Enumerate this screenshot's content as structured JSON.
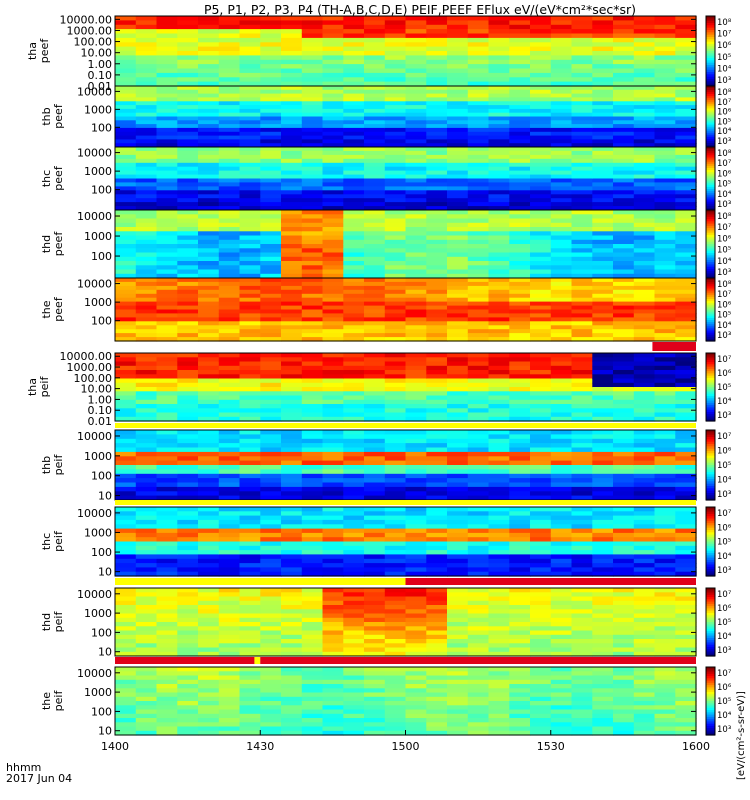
{
  "title": "P5, P1, P2, P3, P4 (TH-A,B,C,D,E) PEIF,PEEF EFlux eV/(eV*cm²*sec*sr)",
  "footer": {
    "line1": "hhmm",
    "line2": "2017 Jun 04"
  },
  "colorbar_unit": "[eV/(cm²-s-sr-eV)]",
  "chart_data": {
    "type": "heatmap",
    "x": {
      "min": 1400,
      "max": 1600,
      "tick_values": [
        1400,
        1430,
        1500,
        1530,
        1600
      ],
      "tick_labels": [
        "1400",
        "1430",
        "1500",
        "1530",
        "1600"
      ]
    },
    "panels": [
      {
        "id": "tha-peef",
        "label": [
          "tha",
          "peef"
        ],
        "ylim": [
          0.01,
          20000
        ],
        "log": true,
        "yticks": [
          0.01,
          0.1,
          1,
          10,
          100,
          1000,
          10000
        ],
        "ytick_labels": [
          "0.01",
          "0.10",
          "1.00",
          "10.00",
          "100.00",
          "1000.00",
          "10000.00"
        ],
        "cbar_ticks": [
          "10³",
          "10⁴",
          "10⁵",
          "10⁶",
          "10⁷",
          "10⁸"
        ]
      },
      {
        "id": "thb-peef",
        "label": [
          "thb",
          "peef"
        ],
        "ylim": [
          8,
          20000
        ],
        "log": true,
        "yticks": [
          100,
          1000,
          10000
        ],
        "ytick_labels": [
          "100",
          "1000",
          "10000"
        ],
        "cbar_ticks": [
          "10³",
          "10⁴",
          "10⁵",
          "10⁶",
          "10⁷",
          "10⁸"
        ]
      },
      {
        "id": "thc-peef",
        "label": [
          "thc",
          "peef"
        ],
        "ylim": [
          8,
          20000
        ],
        "log": true,
        "yticks": [
          100,
          1000,
          10000
        ],
        "ytick_labels": [
          "100",
          "1000",
          "10000"
        ],
        "cbar_ticks": [
          "10³",
          "10⁴",
          "10⁵",
          "10⁶",
          "10⁷",
          "10⁸"
        ]
      },
      {
        "id": "thd-peef",
        "label": [
          "thd",
          "peef"
        ],
        "ylim": [
          8,
          20000
        ],
        "log": true,
        "yticks": [
          100,
          1000,
          10000
        ],
        "ytick_labels": [
          "100",
          "1000",
          "10000"
        ],
        "cbar_ticks": [
          "10³",
          "10⁴",
          "10⁵",
          "10⁶",
          "10⁷",
          "10⁸"
        ]
      },
      {
        "id": "the-peef",
        "label": [
          "the",
          "peef"
        ],
        "ylim": [
          8,
          20000
        ],
        "log": true,
        "yticks": [
          100,
          1000,
          10000
        ],
        "ytick_labels": [
          "100",
          "1000",
          "10000"
        ],
        "cbar_ticks": [
          "10³",
          "10⁴",
          "10⁵",
          "10⁶",
          "10⁷",
          "10⁸"
        ]
      },
      {
        "id": "tha-peif",
        "label": [
          "tha",
          "peif"
        ],
        "ylim": [
          0.01,
          20000
        ],
        "log": true,
        "yticks": [
          0.01,
          0.1,
          1,
          10,
          100,
          1000,
          10000
        ],
        "ytick_labels": [
          "0.01",
          "0.10",
          "1.00",
          "10.00",
          "100.00",
          "1000.00",
          "10000.00"
        ],
        "cbar_ticks": [
          "10³",
          "10⁴",
          "10⁵",
          "10⁶",
          "10⁷"
        ]
      },
      {
        "id": "thb-peif",
        "label": [
          "thb",
          "peif"
        ],
        "ylim": [
          6,
          20000
        ],
        "log": true,
        "yticks": [
          10,
          100,
          1000,
          10000
        ],
        "ytick_labels": [
          "10",
          "100",
          "1000",
          "10000"
        ],
        "cbar_ticks": [
          "10³",
          "10⁴",
          "10⁵",
          "10⁶",
          "10⁷"
        ]
      },
      {
        "id": "thc-peif",
        "label": [
          "thc",
          "peif"
        ],
        "ylim": [
          6,
          20000
        ],
        "log": true,
        "yticks": [
          10,
          100,
          1000,
          10000
        ],
        "ytick_labels": [
          "10",
          "100",
          "1000",
          "10000"
        ],
        "cbar_ticks": [
          "10³",
          "10⁴",
          "10⁵",
          "10⁶",
          "10⁷"
        ]
      },
      {
        "id": "thd-peif",
        "label": [
          "thd",
          "peif"
        ],
        "ylim": [
          6,
          20000
        ],
        "log": true,
        "yticks": [
          10,
          100,
          1000,
          10000
        ],
        "ytick_labels": [
          "10",
          "100",
          "1000",
          "10000"
        ],
        "cbar_ticks": [
          "10³",
          "10⁴",
          "10⁵",
          "10⁶",
          "10⁷"
        ]
      },
      {
        "id": "the-peif",
        "label": [
          "the",
          "peif"
        ],
        "ylim": [
          6,
          20000
        ],
        "log": true,
        "yticks": [
          10,
          100,
          1000,
          10000
        ],
        "ytick_labels": [
          "10",
          "100",
          "1000",
          "10000"
        ],
        "cbar_ticks": [
          "10³",
          "10⁴",
          "10⁵",
          "10⁶",
          "10⁷"
        ]
      }
    ],
    "flag_bars": [
      {
        "after_panel": "the-peef",
        "segments": [
          {
            "from": 1400,
            "to": 1585,
            "color": "#ffffff"
          },
          {
            "from": 1585,
            "to": 1600,
            "color": "#e0001a"
          }
        ]
      },
      {
        "after_panel": "tha-peif",
        "segments": [
          {
            "from": 1400,
            "to": 1600,
            "color": "#ffff00"
          }
        ]
      },
      {
        "after_panel": "thb-peif",
        "segments": [
          {
            "from": 1400,
            "to": 1600,
            "color": "#ffff00"
          }
        ]
      },
      {
        "after_panel": "thc-peif",
        "segments": [
          {
            "from": 1400,
            "to": 1500,
            "color": "#ffff00"
          },
          {
            "from": 1500,
            "to": 1600,
            "color": "#e0001a"
          }
        ]
      },
      {
        "after_panel": "thd-peif",
        "segments": [
          {
            "from": 1400,
            "to": 1448,
            "color": "#e0001a"
          },
          {
            "from": 1448,
            "to": 1450,
            "color": "#ffff00"
          },
          {
            "from": 1450,
            "to": 1600,
            "color": "#e0001a"
          }
        ]
      }
    ]
  }
}
